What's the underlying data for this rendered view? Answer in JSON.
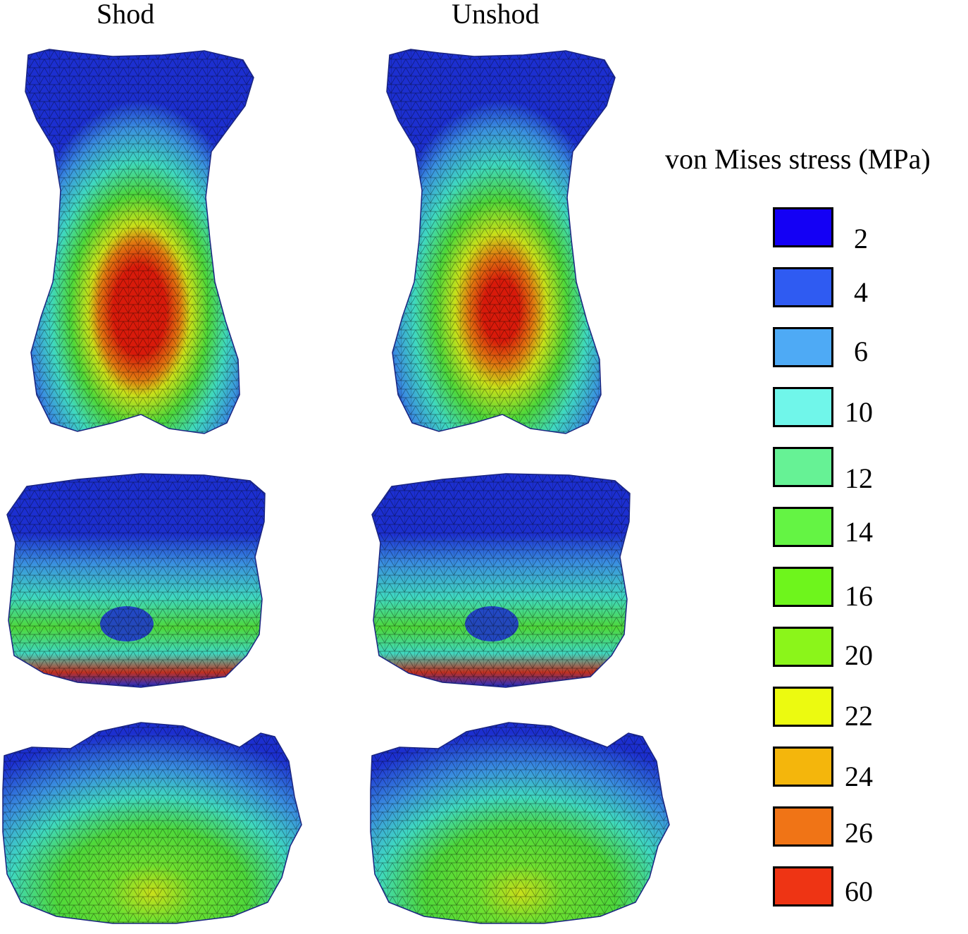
{
  "columns": [
    "Shod",
    "Unshod"
  ],
  "legend": {
    "title": "von Mises stress (MPa)",
    "items": [
      {
        "label": "2",
        "color": "#1400f5"
      },
      {
        "label": "4",
        "color": "#2f5bf2"
      },
      {
        "label": "6",
        "color": "#4eaaf5"
      },
      {
        "label": "10",
        "color": "#70f6ea"
      },
      {
        "label": "12",
        "color": "#66f295"
      },
      {
        "label": "14",
        "color": "#64f444"
      },
      {
        "label": "16",
        "color": "#6ef51c"
      },
      {
        "label": "20",
        "color": "#8bf51a"
      },
      {
        "label": "22",
        "color": "#ecfa10"
      },
      {
        "label": "24",
        "color": "#f4b60c"
      },
      {
        "label": "26",
        "color": "#f07416"
      },
      {
        "label": "60",
        "color": "#ee3414"
      }
    ]
  }
}
